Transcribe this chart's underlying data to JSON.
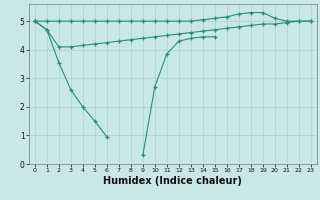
{
  "x_all": [
    0,
    1,
    2,
    3,
    4,
    5,
    6,
    7,
    8,
    9,
    10,
    11,
    12,
    13,
    14,
    15,
    16,
    17,
    18,
    19,
    20,
    21,
    22,
    23
  ],
  "line_top": [
    5.0,
    5.0,
    5.0,
    5.0,
    5.0,
    5.0,
    5.0,
    5.0,
    5.0,
    5.0,
    5.0,
    5.0,
    5.0,
    5.0,
    5.05,
    5.1,
    5.15,
    5.25,
    5.3,
    5.3,
    5.1,
    5.0,
    5.0,
    5.0
  ],
  "line_mid": [
    5.0,
    4.7,
    4.1,
    4.1,
    4.15,
    4.2,
    4.25,
    4.3,
    4.35,
    4.4,
    4.45,
    4.5,
    4.55,
    4.6,
    4.65,
    4.7,
    4.75,
    4.8,
    4.85,
    4.9,
    4.9,
    4.95,
    5.0,
    5.0
  ],
  "line_v_x": [
    0,
    1,
    2,
    3,
    4,
    5,
    6,
    7,
    8,
    9,
    10,
    11,
    12,
    13,
    14,
    15
  ],
  "line_v_y": [
    5.0,
    4.7,
    3.55,
    2.6,
    2.0,
    1.5,
    0.95,
    null,
    null,
    0.3,
    2.7,
    3.85,
    4.3,
    4.4,
    4.45,
    4.45
  ],
  "line_color": "#2e8b74",
  "bg_color": "#c8e8e8",
  "grid_color": "#b0cfcf",
  "xlabel": "Humidex (Indice chaleur)",
  "ylim": [
    0,
    5.6
  ],
  "xlim": [
    -0.5,
    23.5
  ],
  "yticks": [
    0,
    1,
    2,
    3,
    4,
    5
  ],
  "xticks": [
    0,
    1,
    2,
    3,
    4,
    5,
    6,
    7,
    8,
    9,
    10,
    11,
    12,
    13,
    14,
    15,
    16,
    17,
    18,
    19,
    20,
    21,
    22,
    23
  ]
}
